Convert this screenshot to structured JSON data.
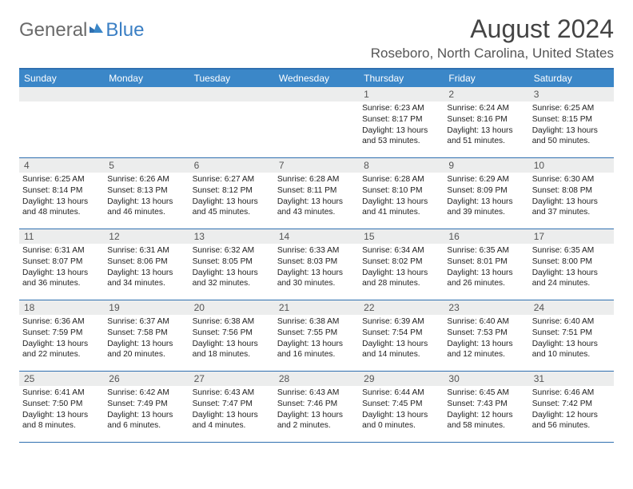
{
  "logo": {
    "text_gray": "General",
    "text_blue": "Blue"
  },
  "header": {
    "month_title": "August 2024",
    "location": "Roseboro, North Carolina, United States"
  },
  "colors": {
    "header_bar": "#3b87c8",
    "rule": "#2f6fb0",
    "day_num_bg": "#eceded",
    "logo_gray": "#6a6a6a",
    "logo_blue": "#3b7fc4"
  },
  "weekdays": [
    "Sunday",
    "Monday",
    "Tuesday",
    "Wednesday",
    "Thursday",
    "Friday",
    "Saturday"
  ],
  "weeks": [
    [
      null,
      null,
      null,
      null,
      {
        "n": "1",
        "sr": "6:23 AM",
        "ss": "8:17 PM",
        "dl": "13 hours and 53 minutes."
      },
      {
        "n": "2",
        "sr": "6:24 AM",
        "ss": "8:16 PM",
        "dl": "13 hours and 51 minutes."
      },
      {
        "n": "3",
        "sr": "6:25 AM",
        "ss": "8:15 PM",
        "dl": "13 hours and 50 minutes."
      }
    ],
    [
      {
        "n": "4",
        "sr": "6:25 AM",
        "ss": "8:14 PM",
        "dl": "13 hours and 48 minutes."
      },
      {
        "n": "5",
        "sr": "6:26 AM",
        "ss": "8:13 PM",
        "dl": "13 hours and 46 minutes."
      },
      {
        "n": "6",
        "sr": "6:27 AM",
        "ss": "8:12 PM",
        "dl": "13 hours and 45 minutes."
      },
      {
        "n": "7",
        "sr": "6:28 AM",
        "ss": "8:11 PM",
        "dl": "13 hours and 43 minutes."
      },
      {
        "n": "8",
        "sr": "6:28 AM",
        "ss": "8:10 PM",
        "dl": "13 hours and 41 minutes."
      },
      {
        "n": "9",
        "sr": "6:29 AM",
        "ss": "8:09 PM",
        "dl": "13 hours and 39 minutes."
      },
      {
        "n": "10",
        "sr": "6:30 AM",
        "ss": "8:08 PM",
        "dl": "13 hours and 37 minutes."
      }
    ],
    [
      {
        "n": "11",
        "sr": "6:31 AM",
        "ss": "8:07 PM",
        "dl": "13 hours and 36 minutes."
      },
      {
        "n": "12",
        "sr": "6:31 AM",
        "ss": "8:06 PM",
        "dl": "13 hours and 34 minutes."
      },
      {
        "n": "13",
        "sr": "6:32 AM",
        "ss": "8:05 PM",
        "dl": "13 hours and 32 minutes."
      },
      {
        "n": "14",
        "sr": "6:33 AM",
        "ss": "8:03 PM",
        "dl": "13 hours and 30 minutes."
      },
      {
        "n": "15",
        "sr": "6:34 AM",
        "ss": "8:02 PM",
        "dl": "13 hours and 28 minutes."
      },
      {
        "n": "16",
        "sr": "6:35 AM",
        "ss": "8:01 PM",
        "dl": "13 hours and 26 minutes."
      },
      {
        "n": "17",
        "sr": "6:35 AM",
        "ss": "8:00 PM",
        "dl": "13 hours and 24 minutes."
      }
    ],
    [
      {
        "n": "18",
        "sr": "6:36 AM",
        "ss": "7:59 PM",
        "dl": "13 hours and 22 minutes."
      },
      {
        "n": "19",
        "sr": "6:37 AM",
        "ss": "7:58 PM",
        "dl": "13 hours and 20 minutes."
      },
      {
        "n": "20",
        "sr": "6:38 AM",
        "ss": "7:56 PM",
        "dl": "13 hours and 18 minutes."
      },
      {
        "n": "21",
        "sr": "6:38 AM",
        "ss": "7:55 PM",
        "dl": "13 hours and 16 minutes."
      },
      {
        "n": "22",
        "sr": "6:39 AM",
        "ss": "7:54 PM",
        "dl": "13 hours and 14 minutes."
      },
      {
        "n": "23",
        "sr": "6:40 AM",
        "ss": "7:53 PM",
        "dl": "13 hours and 12 minutes."
      },
      {
        "n": "24",
        "sr": "6:40 AM",
        "ss": "7:51 PM",
        "dl": "13 hours and 10 minutes."
      }
    ],
    [
      {
        "n": "25",
        "sr": "6:41 AM",
        "ss": "7:50 PM",
        "dl": "13 hours and 8 minutes."
      },
      {
        "n": "26",
        "sr": "6:42 AM",
        "ss": "7:49 PM",
        "dl": "13 hours and 6 minutes."
      },
      {
        "n": "27",
        "sr": "6:43 AM",
        "ss": "7:47 PM",
        "dl": "13 hours and 4 minutes."
      },
      {
        "n": "28",
        "sr": "6:43 AM",
        "ss": "7:46 PM",
        "dl": "13 hours and 2 minutes."
      },
      {
        "n": "29",
        "sr": "6:44 AM",
        "ss": "7:45 PM",
        "dl": "13 hours and 0 minutes."
      },
      {
        "n": "30",
        "sr": "6:45 AM",
        "ss": "7:43 PM",
        "dl": "12 hours and 58 minutes."
      },
      {
        "n": "31",
        "sr": "6:46 AM",
        "ss": "7:42 PM",
        "dl": "12 hours and 56 minutes."
      }
    ]
  ],
  "labels": {
    "sunrise": "Sunrise:",
    "sunset": "Sunset:",
    "daylight": "Daylight:"
  }
}
